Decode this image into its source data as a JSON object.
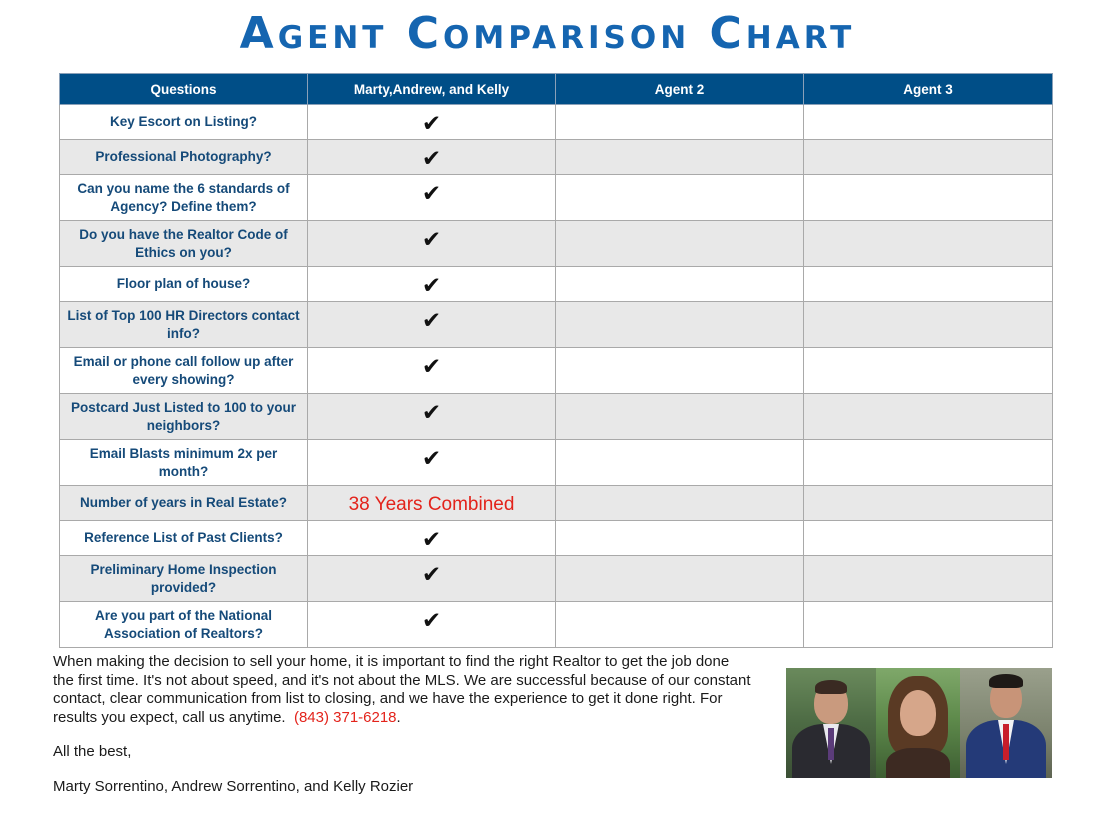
{
  "title": "Agent Comparison Chart",
  "table": {
    "headers": [
      "Questions",
      "Marty,Andrew, and Kelly",
      "Agent 2",
      "Agent 3"
    ],
    "rows": [
      {
        "question": "Key Escort on Listing?",
        "answer": "✔"
      },
      {
        "question": "Professional Photography?",
        "answer": "✔"
      },
      {
        "question": "Can you name the 6 standards of Agency? Define them?",
        "answer": "✔"
      },
      {
        "question": "Do you have the Realtor Code of Ethics on you?",
        "answer": "✔"
      },
      {
        "question": "Floor plan of house?",
        "answer": "✔"
      },
      {
        "question": "List of Top 100 HR Directors contact info?",
        "answer": "✔"
      },
      {
        "question": "Email or phone call follow up after every showing?",
        "answer": "✔"
      },
      {
        "question": "Postcard Just Listed to 100 to your neighbors?",
        "answer": "✔"
      },
      {
        "question": "Email Blasts minimum 2x per month?",
        "answer": "✔"
      },
      {
        "question": "Number of years in Real Estate?",
        "answer": "38 Years Combined"
      },
      {
        "question": "Reference List of Past Clients?",
        "answer": "✔"
      },
      {
        "question": "Preliminary Home Inspection provided?",
        "answer": "✔"
      },
      {
        "question": "Are you part of the National Association of Realtors?",
        "answer": "✔"
      }
    ]
  },
  "body": {
    "paragraph": "When making the decision to sell your home, it is important to find the right Realtor to get the job done the first time. It's not about speed, and it's not about the MLS. We are successful because of our constant contact, clear communication from list to closing, and we have the experience to get it done right. For results you expect, call us anytime.",
    "phone": "(843) 371-6218",
    "after_phone": ".",
    "signoff": "All the best,",
    "names": "Marty Sorrentino, Andrew Sorrentino, and Kelly Rozier"
  },
  "colors": {
    "title": "#1565b0",
    "header_bg": "#004e87",
    "question_text": "#154a79",
    "accent_red": "#e3231b",
    "alt_row": "#e8e8e8"
  }
}
